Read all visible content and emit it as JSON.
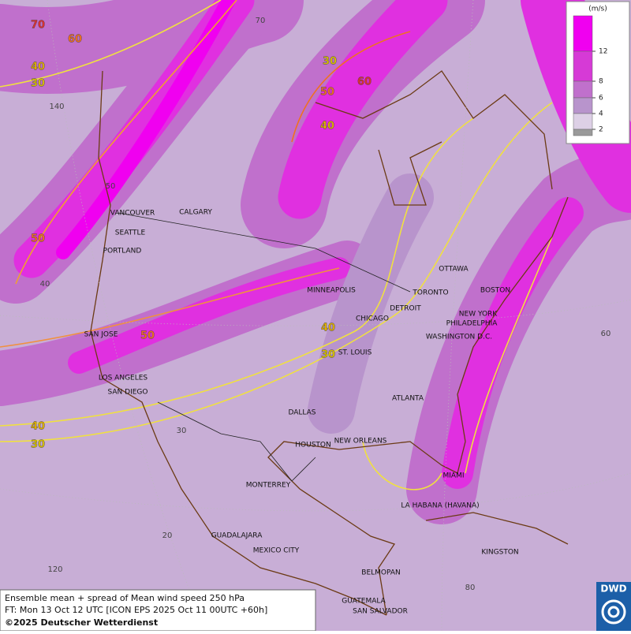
{
  "legend": {
    "unit": "(m/s)",
    "ticks": [
      12,
      8,
      6,
      4,
      2
    ],
    "colors": [
      "#f000f0",
      "#d63ad6",
      "#c070cc",
      "#b894cc",
      "#ddd0e6",
      "#9a9a9a"
    ]
  },
  "cities": [
    "VANCOUVER",
    "CALGARY",
    "SEATTLE",
    "PORTLAND",
    "SAN JOSE",
    "LOS ANGELES",
    "SAN DIEGO",
    "MINNEAPOLIS",
    "CHICAGO",
    "DETROIT",
    "TORONTO",
    "OTTAWA",
    "BOSTON",
    "NEW YORK",
    "PHILADELPHIA",
    "WASHINGTON D.C.",
    "ST. LOUIS",
    "DALLAS",
    "ATLANTA",
    "HOUSTON",
    "NEW ORLEANS",
    "MIAMI",
    "MONTERREY",
    "LA HABANA (HAVANA)",
    "GUADALAJARA",
    "MEXICO CITY",
    "KINGSTON",
    "BELMOPAN",
    "GUATEMALA",
    "SAN SALVADOR"
  ],
  "contour_labels": [
    {
      "value": 70,
      "color": "#e03030"
    },
    {
      "value": 60,
      "color": "#f07020"
    },
    {
      "value": 40,
      "color": "#e0b000"
    },
    {
      "value": 30,
      "color": "#d8c000"
    },
    {
      "value": 30,
      "color": "#d8c000"
    },
    {
      "value": 60,
      "color": "#e03030"
    },
    {
      "value": 50,
      "color": "#f07020"
    },
    {
      "value": 40,
      "color": "#e0b000"
    },
    {
      "value": 50,
      "color": "#f07020"
    },
    {
      "value": 50,
      "color": "#f07020"
    },
    {
      "value": 40,
      "color": "#e0b000"
    },
    {
      "value": 30,
      "color": "#d8c000"
    },
    {
      "value": 40,
      "color": "#e0b000"
    },
    {
      "value": 30,
      "color": "#d8c000"
    }
  ],
  "grid_labels": [
    70,
    140,
    50,
    40,
    30,
    20,
    120,
    60,
    80
  ],
  "footer": {
    "lines": [
      "Ensemble mean + spread of Mean wind speed 250 hPa",
      "FT: Mon 13 Oct 12 UTC [ICON EPS 2025 Oct 11 00UTC +60h]",
      "©2025 Deutscher Wetterdienst"
    ]
  },
  "logo": "DWD"
}
